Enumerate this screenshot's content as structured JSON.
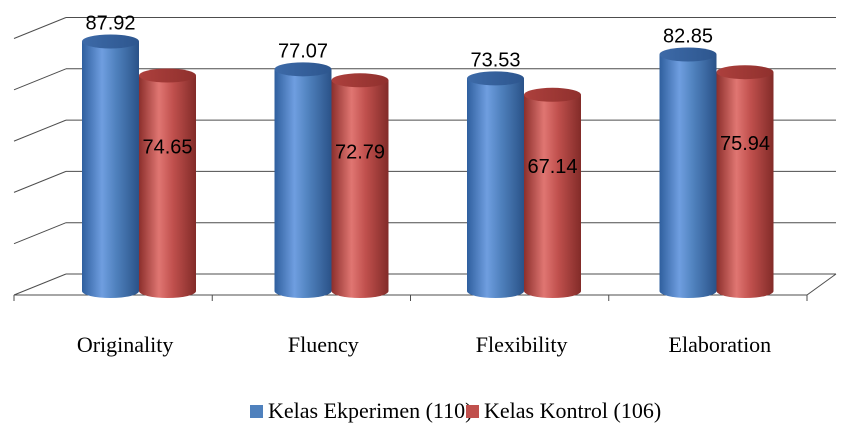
{
  "chart_data": {
    "type": "bar",
    "categories": [
      "Originality",
      "Fluency",
      "Flexibility",
      "Elaboration"
    ],
    "series": [
      {
        "name": "Kelas Ekperimen (110)",
        "color": "#4F81BD",
        "values": [
          87.92,
          77.07,
          73.53,
          82.85
        ]
      },
      {
        "name": "Kelas Kontrol (106)",
        "color": "#C0504D",
        "values": [
          74.65,
          72.79,
          67.14,
          75.94
        ]
      }
    ],
    "ylim": [
      0,
      100
    ],
    "grid": true,
    "legend": "bottom",
    "style": "3d-cylinder"
  }
}
